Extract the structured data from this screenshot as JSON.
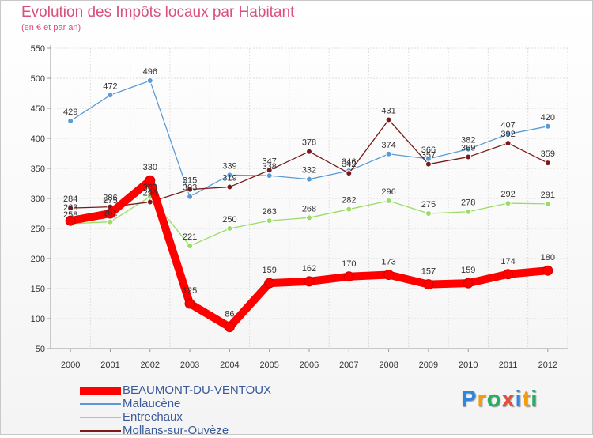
{
  "header": {
    "title": "Evolution des Impôts locaux par Habitant",
    "subtitle": "(en € et par an)"
  },
  "chart_data": {
    "type": "line",
    "title": "Evolution des Impôts locaux par Habitant",
    "subtitle": "(en € et par an)",
    "xlabel": "",
    "ylabel": "",
    "x": [
      "2000",
      "2001",
      "2002",
      "2003",
      "2004",
      "2005",
      "2006",
      "2007",
      "2008",
      "2009",
      "2010",
      "2011",
      "2012"
    ],
    "ylim": [
      50,
      550
    ],
    "yticks": [
      50,
      100,
      150,
      200,
      250,
      300,
      350,
      400,
      450,
      500,
      550
    ],
    "grid": true,
    "legend_position": "bottom-left",
    "series": [
      {
        "name": "BEAUMONT-DU-VENTOUX",
        "color": "#ff0000",
        "values": [
          263,
          275,
          330,
          125,
          86,
          159,
          162,
          170,
          173,
          157,
          159,
          174,
          180
        ],
        "labels": [
          "263",
          "275",
          "330",
          "125",
          "86",
          "159",
          "162",
          "170",
          "173",
          "157",
          "159",
          "174",
          "180"
        ]
      },
      {
        "name": "Malaucène",
        "color": "#5b9bd5",
        "values": [
          429,
          472,
          496,
          303,
          339,
          338,
          332,
          346,
          374,
          366,
          382,
          407,
          420
        ],
        "labels": [
          "429",
          "472",
          "496",
          "303",
          "339",
          "338",
          "332",
          "346",
          "374",
          "366",
          "382",
          "407",
          "420"
        ]
      },
      {
        "name": "Entrechaux",
        "color": "#99dd66",
        "values": [
          258,
          261,
          303,
          221,
          250,
          263,
          268,
          282,
          296,
          275,
          278,
          292,
          291
        ],
        "labels": [
          "258",
          "261",
          "303",
          "221",
          "250",
          "263",
          "268",
          "282",
          "296",
          "275",
          "278",
          "292",
          "291"
        ]
      },
      {
        "name": "Mollans-sur-Ouvèze",
        "color": "#7a1a1a",
        "values": [
          284,
          286,
          294,
          315,
          319,
          347,
          378,
          342,
          431,
          357,
          369,
          392,
          359
        ],
        "labels": [
          "284",
          "286",
          "294",
          "315",
          "319",
          "347",
          "378",
          "342",
          "431",
          "357",
          "369",
          "392",
          "359"
        ]
      }
    ]
  },
  "logo": {
    "letters": [
      "P",
      "r",
      "o",
      "x",
      "i",
      "t",
      "i"
    ],
    "colors": [
      "#2e86de",
      "#f39c12",
      "#27ae60",
      "#e74c3c",
      "#2e86de",
      "#f39c12",
      "#27ae60"
    ]
  }
}
